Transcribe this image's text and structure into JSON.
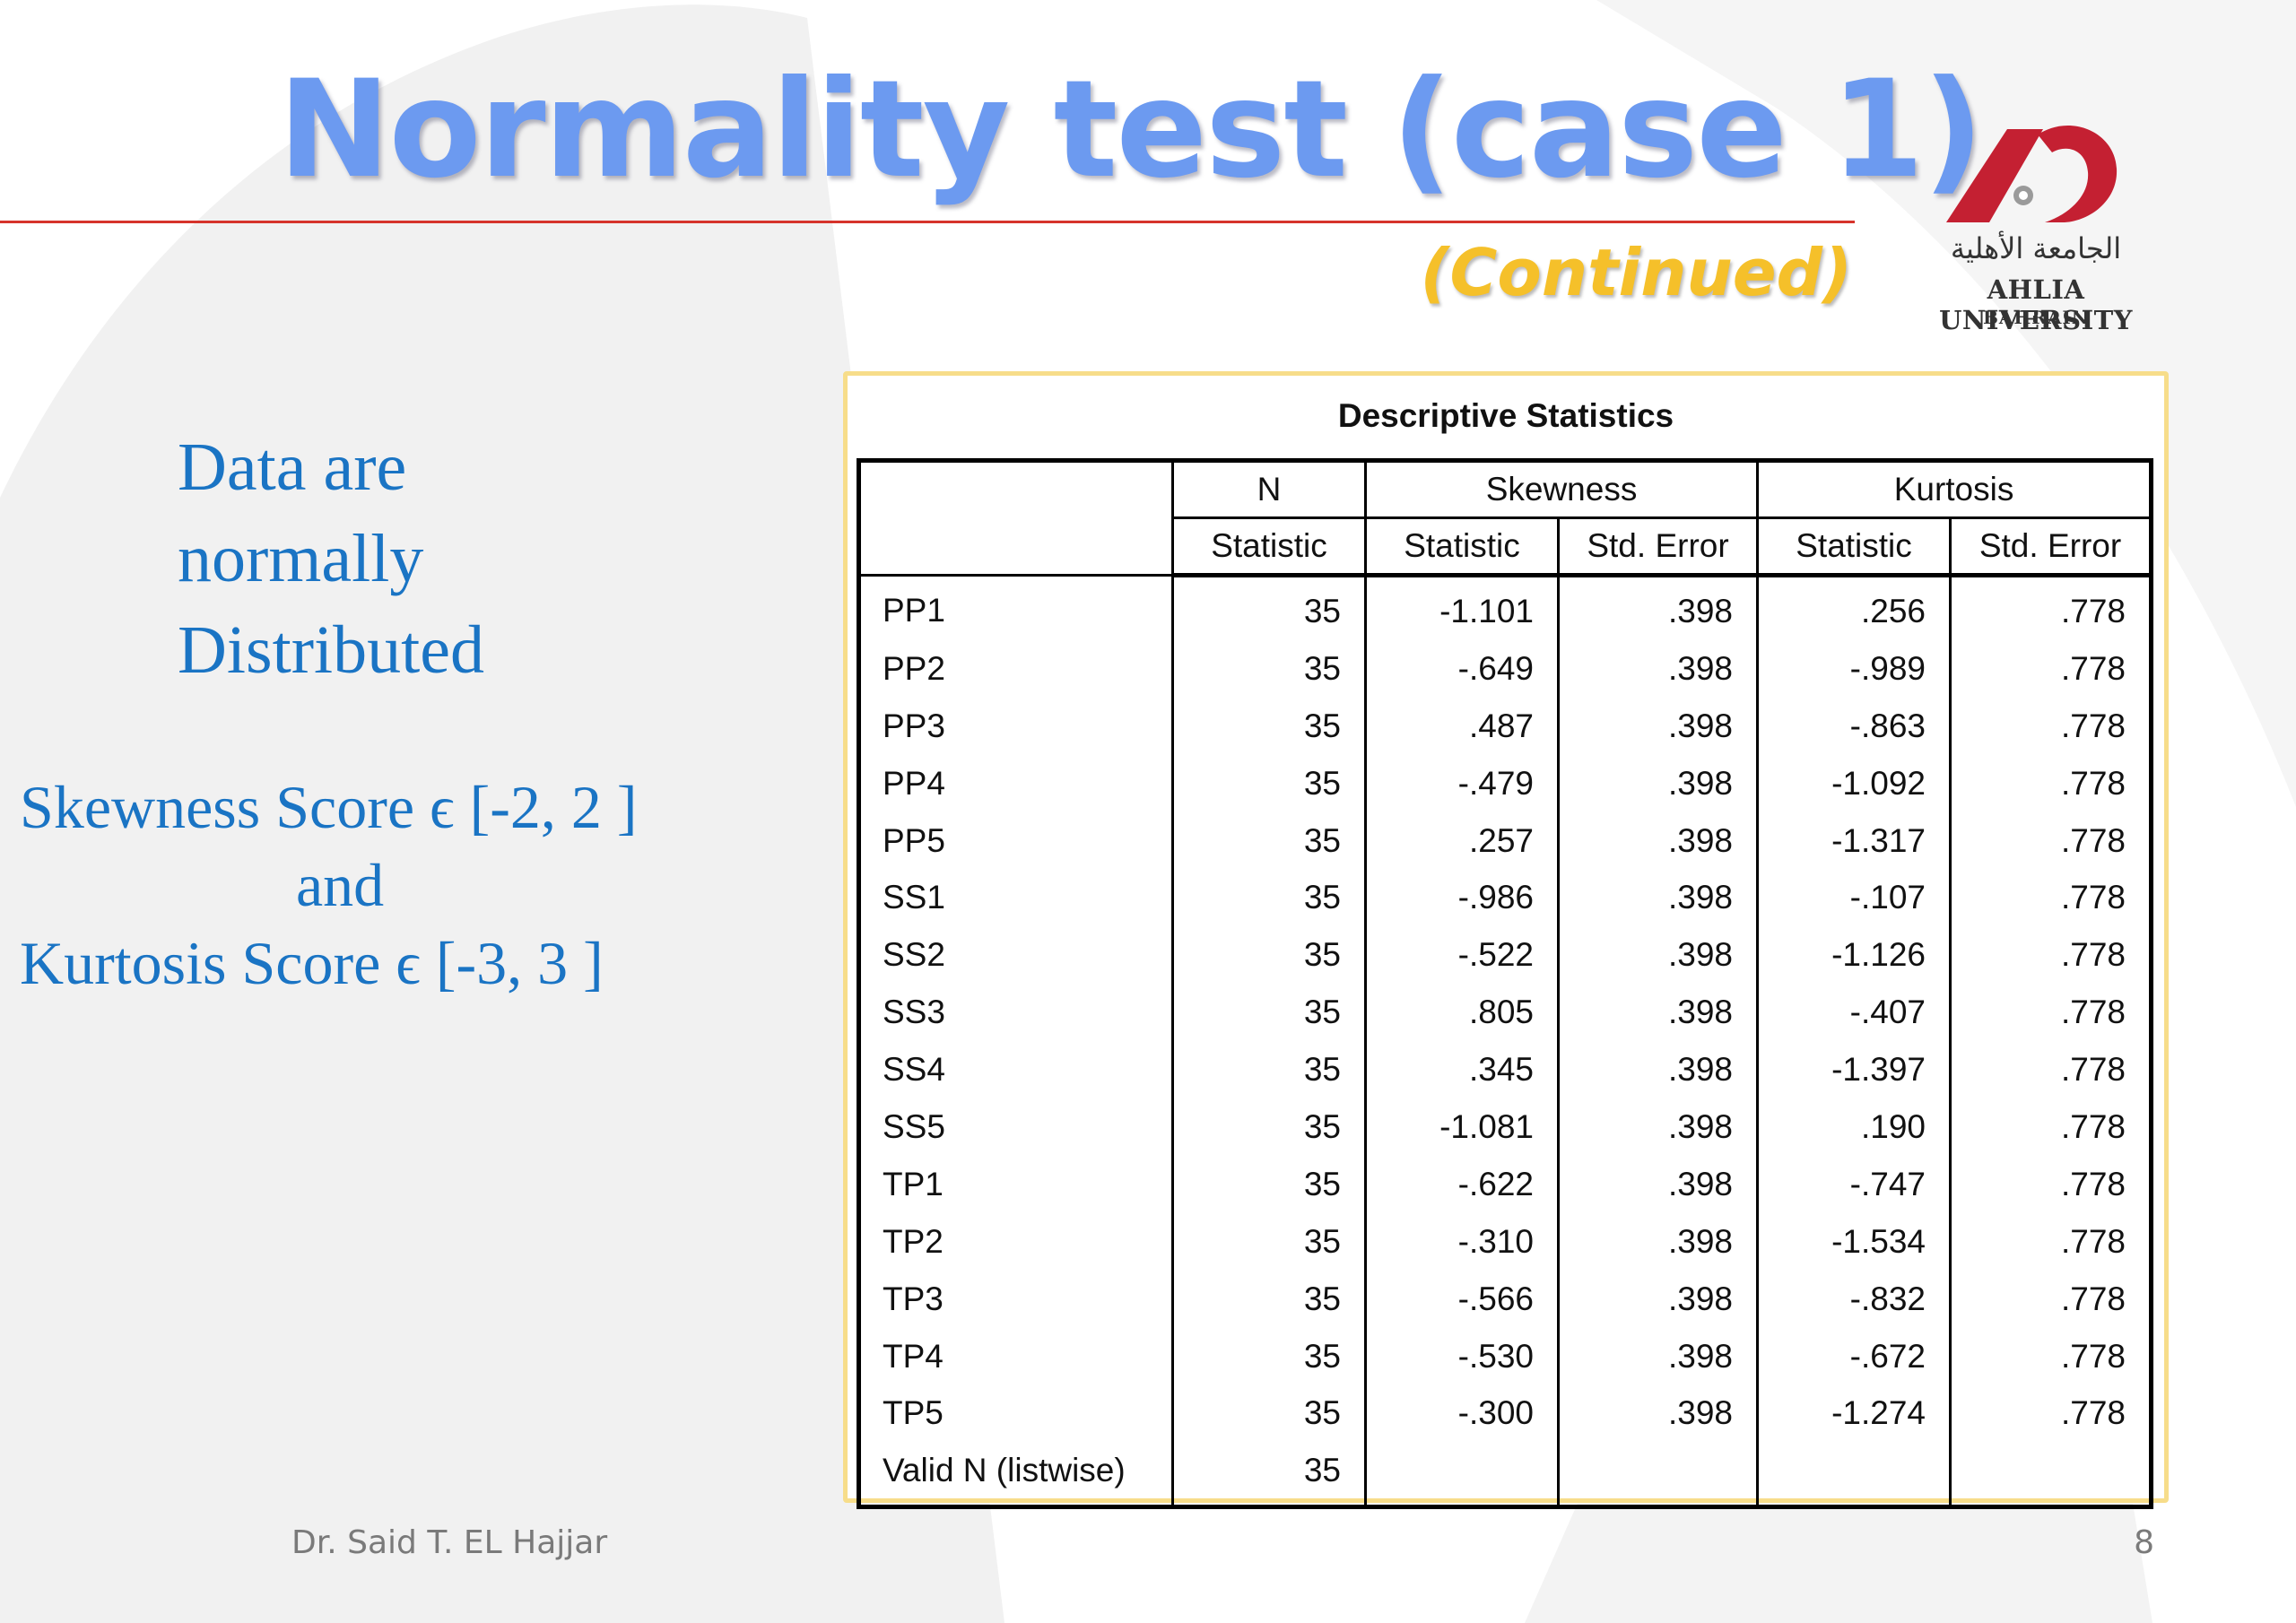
{
  "slide": {
    "title": "Normality test (case 1)",
    "subtitle": "(Continued)",
    "accent_color": "#6c9af0",
    "rule_color": "#d6332b",
    "subtitle_color": "#f5c02a"
  },
  "logo": {
    "arabic": "الجامعة الأهلية",
    "name": "AHLIA UNIVERSITY",
    "location": "BAHRAIN",
    "brand_color": "#c42032"
  },
  "notes": {
    "conclusion_lines": [
      "Data are",
      "normally",
      "Distributed"
    ],
    "skewness_rule": "Skewness Score ϵ [-2, 2 ]",
    "joiner": "and",
    "kurtosis_rule": "Kurtosis Score ϵ [-3, 3 ]",
    "text_color": "#1a74c4"
  },
  "table": {
    "caption": "Descriptive Statistics",
    "group_headers": [
      "N",
      "Skewness",
      "Kurtosis"
    ],
    "sub_headers": [
      "Statistic",
      "Statistic",
      "Std. Error",
      "Statistic",
      "Std. Error"
    ],
    "rows": [
      {
        "label": "PP1",
        "n": "35",
        "skew": "-1.101",
        "skew_se": ".398",
        "kurt": ".256",
        "kurt_se": ".778"
      },
      {
        "label": "PP2",
        "n": "35",
        "skew": "-.649",
        "skew_se": ".398",
        "kurt": "-.989",
        "kurt_se": ".778"
      },
      {
        "label": "PP3",
        "n": "35",
        "skew": ".487",
        "skew_se": ".398",
        "kurt": "-.863",
        "kurt_se": ".778"
      },
      {
        "label": "PP4",
        "n": "35",
        "skew": "-.479",
        "skew_se": ".398",
        "kurt": "-1.092",
        "kurt_se": ".778"
      },
      {
        "label": "PP5",
        "n": "35",
        "skew": ".257",
        "skew_se": ".398",
        "kurt": "-1.317",
        "kurt_se": ".778"
      },
      {
        "label": "SS1",
        "n": "35",
        "skew": "-.986",
        "skew_se": ".398",
        "kurt": "-.107",
        "kurt_se": ".778"
      },
      {
        "label": "SS2",
        "n": "35",
        "skew": "-.522",
        "skew_se": ".398",
        "kurt": "-1.126",
        "kurt_se": ".778"
      },
      {
        "label": "SS3",
        "n": "35",
        "skew": ".805",
        "skew_se": ".398",
        "kurt": "-.407",
        "kurt_se": ".778"
      },
      {
        "label": "SS4",
        "n": "35",
        "skew": ".345",
        "skew_se": ".398",
        "kurt": "-1.397",
        "kurt_se": ".778"
      },
      {
        "label": "SS5",
        "n": "35",
        "skew": "-1.081",
        "skew_se": ".398",
        "kurt": ".190",
        "kurt_se": ".778"
      },
      {
        "label": "TP1",
        "n": "35",
        "skew": "-.622",
        "skew_se": ".398",
        "kurt": "-.747",
        "kurt_se": ".778"
      },
      {
        "label": "TP2",
        "n": "35",
        "skew": "-.310",
        "skew_se": ".398",
        "kurt": "-1.534",
        "kurt_se": ".778"
      },
      {
        "label": "TP3",
        "n": "35",
        "skew": "-.566",
        "skew_se": ".398",
        "kurt": "-.832",
        "kurt_se": ".778"
      },
      {
        "label": "TP4",
        "n": "35",
        "skew": "-.530",
        "skew_se": ".398",
        "kurt": "-.672",
        "kurt_se": ".778"
      },
      {
        "label": "TP5",
        "n": "35",
        "skew": "-.300",
        "skew_se": ".398",
        "kurt": "-1.274",
        "kurt_se": ".778"
      },
      {
        "label": "Valid N (listwise)",
        "n": "35",
        "skew": "",
        "skew_se": "",
        "kurt": "",
        "kurt_se": ""
      }
    ]
  },
  "footer": {
    "author": "Dr. Said T. EL Hajjar",
    "page_number": "8"
  }
}
